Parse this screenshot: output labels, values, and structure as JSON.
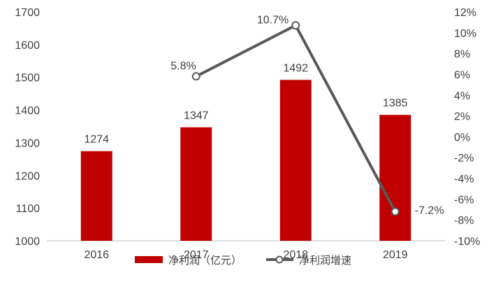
{
  "chart_data": {
    "type": "bar",
    "categories": [
      "2016",
      "2017",
      "2018",
      "2019"
    ],
    "series": [
      {
        "name": "净利润（亿元）",
        "type": "bar",
        "axis": "left",
        "values": [
          1274,
          1347,
          1492,
          1385
        ],
        "data_labels": [
          "1274",
          "1347",
          "1492",
          "1385"
        ],
        "color": "#C00000"
      },
      {
        "name": "净利润增速",
        "type": "line",
        "axis": "right",
        "values": [
          null,
          5.8,
          10.7,
          -7.2
        ],
        "data_labels": [
          "",
          "5.8%",
          "10.7%",
          "-7.2%"
        ],
        "color": "#595959",
        "marker": "open-circle"
      }
    ],
    "y_left": {
      "min": 1000,
      "max": 1700,
      "ticks": [
        "1000",
        "1100",
        "1200",
        "1300",
        "1400",
        "1500",
        "1600",
        "1700"
      ]
    },
    "y_right": {
      "min": -10,
      "max": 12,
      "unit": "%",
      "ticks": [
        "-10%",
        "-8%",
        "-6%",
        "-4%",
        "-2%",
        "0%",
        "2%",
        "4%",
        "6%",
        "8%",
        "10%",
        "12%"
      ]
    },
    "grid": false,
    "legend": "bottom"
  }
}
